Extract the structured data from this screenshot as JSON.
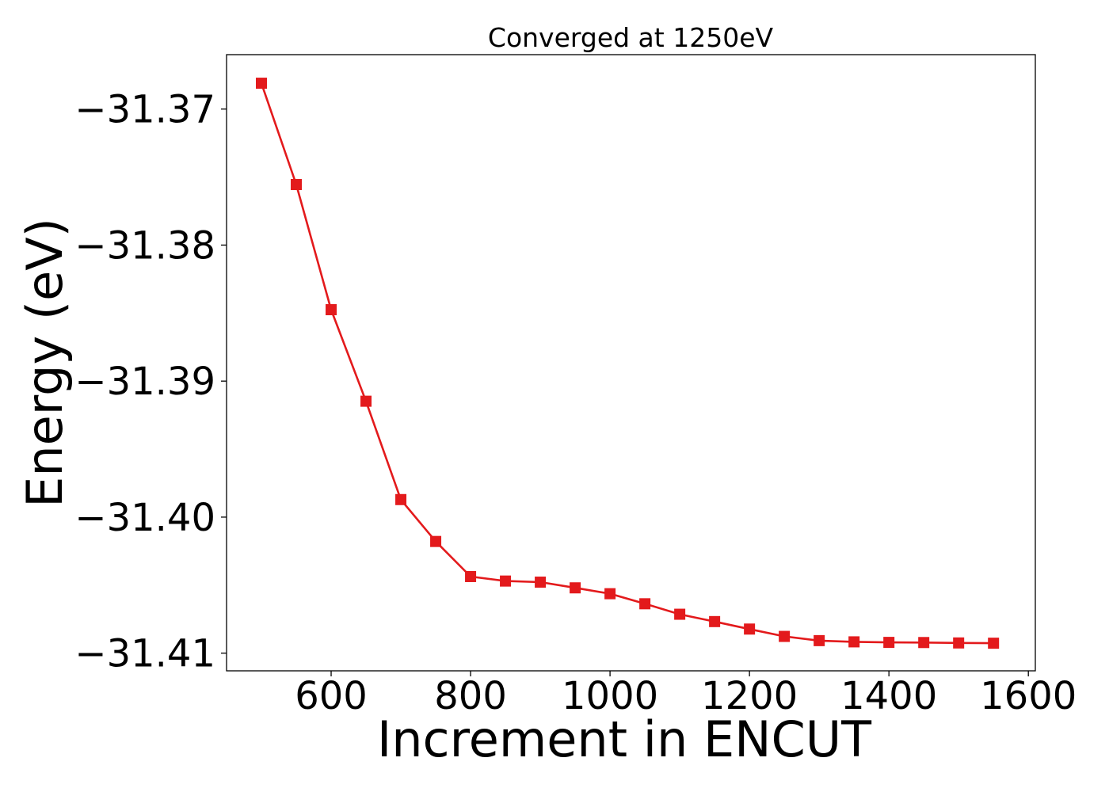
{
  "chart_data": {
    "type": "line",
    "title": "Converged at 1250eV",
    "xlabel": "Increment in ENCUT",
    "ylabel": "Energy (eV)",
    "xlim": [
      450,
      1610
    ],
    "ylim": [
      -31.4113,
      -31.366
    ],
    "xticks": [
      600,
      800,
      1000,
      1200,
      1400,
      1600
    ],
    "xtick_labels": [
      "600",
      "800",
      "1000",
      "1200",
      "1400",
      "1600"
    ],
    "yticks": [
      -31.37,
      -31.38,
      -31.39,
      -31.4,
      -31.41
    ],
    "ytick_labels": [
      "−31.37",
      "−31.38",
      "−31.39",
      "−31.40",
      "−31.41"
    ],
    "grid": false,
    "legend": "none",
    "series": [
      {
        "color": "#e31a1c",
        "marker": "square",
        "x": [
          500,
          550,
          600,
          650,
          700,
          750,
          800,
          850,
          900,
          950,
          1000,
          1050,
          1100,
          1150,
          1200,
          1250,
          1300,
          1350,
          1400,
          1450,
          1500,
          1550
        ],
        "y": [
          -31.3681,
          -31.37555,
          -31.38475,
          -31.39148,
          -31.39871,
          -31.40179,
          -31.40437,
          -31.4047,
          -31.40478,
          -31.4052,
          -31.40563,
          -31.40637,
          -31.40714,
          -31.40768,
          -31.40823,
          -31.40877,
          -31.40908,
          -31.40917,
          -31.40921,
          -31.40922,
          -31.40925,
          -31.40927
        ]
      }
    ]
  }
}
